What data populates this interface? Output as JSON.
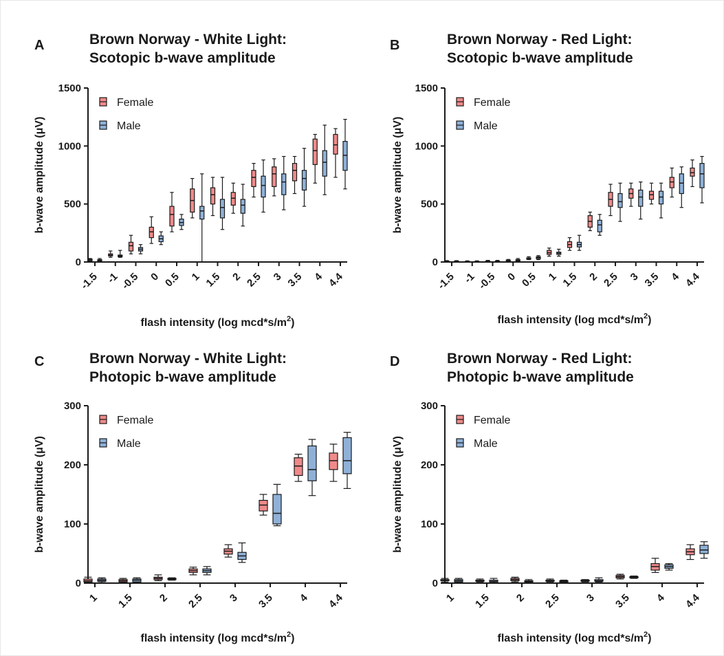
{
  "colors": {
    "female": "#f08a8a",
    "male": "#8fb1d8",
    "axis": "#1a1a1a"
  },
  "chart_data": [
    {
      "panel_letter": "A",
      "type": "box",
      "title_line1": "Brown Norway - White Light:",
      "title_line2": "Scotopic b-wave amplitude",
      "xlabel": "flash intensity (log mcd*s/m",
      "xlabel_sup": "2",
      "xlabel_end": ")",
      "ylabel": "b-wave amplitude (μV)",
      "ylim": [
        0,
        1500
      ],
      "yticks": [
        "0",
        "500",
        "1000",
        "1500"
      ],
      "ytick_values": [
        0,
        500,
        1000,
        1500
      ],
      "categories": [
        "-1.5",
        "-1",
        "-0.5",
        "0",
        "0.5",
        "1",
        "1.5",
        "2",
        "2.5",
        "3",
        "3.5",
        "4",
        "4.4"
      ],
      "legend": [
        "Female",
        "Male"
      ],
      "legend_position": "top-left",
      "series": [
        {
          "name": "Female",
          "boxes": [
            [
              5,
              10,
              18,
              25,
              30
            ],
            [
              40,
              52,
              60,
              70,
              95
            ],
            [
              70,
              95,
              140,
              170,
              230
            ],
            [
              160,
              210,
              260,
              300,
              390
            ],
            [
              260,
              310,
              410,
              480,
              600
            ],
            [
              380,
              430,
              530,
              630,
              720
            ],
            [
              400,
              500,
              580,
              640,
              730
            ],
            [
              420,
              490,
              550,
              600,
              680
            ],
            [
              560,
              650,
              730,
              790,
              850
            ],
            [
              570,
              650,
              760,
              820,
              890
            ],
            [
              590,
              700,
              790,
              850,
              910
            ],
            [
              680,
              840,
              960,
              1060,
              1100
            ],
            [
              730,
              930,
              1010,
              1100,
              1150
            ]
          ]
        },
        {
          "name": "Male",
          "boxes": [
            [
              5,
              10,
              15,
              20,
              30
            ],
            [
              40,
              45,
              52,
              60,
              100
            ],
            [
              70,
              95,
              110,
              125,
              150
            ],
            [
              150,
              175,
              200,
              225,
              260
            ],
            [
              280,
              315,
              340,
              370,
              410
            ],
            [
              0,
              370,
              440,
              480,
              760
            ],
            [
              280,
              380,
              470,
              540,
              730
            ],
            [
              310,
              420,
              490,
              540,
              670
            ],
            [
              430,
              560,
              660,
              740,
              880
            ],
            [
              450,
              580,
              690,
              760,
              910
            ],
            [
              480,
              620,
              720,
              790,
              980
            ],
            [
              580,
              740,
              860,
              960,
              1180
            ],
            [
              630,
              790,
              920,
              1040,
              1230
            ]
          ]
        }
      ]
    },
    {
      "panel_letter": "B",
      "type": "box",
      "title_line1": "Brown Norway - Red Light:",
      "title_line2": "Scotopic b-wave amplitude",
      "xlabel": "flash intensity (log mcd*s/m",
      "xlabel_sup": "2",
      "xlabel_end": ")",
      "ylabel": "b-wave amplitude (μV)",
      "ylim": [
        0,
        1500
      ],
      "yticks": [
        "0",
        "500",
        "1000",
        "1500"
      ],
      "ytick_values": [
        0,
        500,
        1000,
        1500
      ],
      "categories": [
        "-1.5",
        "-1",
        "-0.5",
        "0",
        "0.5",
        "1",
        "1.5",
        "2",
        "2.5",
        "3",
        "3.5",
        "4",
        "4.4"
      ],
      "legend": [
        "Female",
        "Male"
      ],
      "legend_position": "top-left",
      "series": [
        {
          "name": "Female",
          "boxes": [
            [
              0,
              3,
              5,
              8,
              12
            ],
            [
              0,
              2,
              4,
              6,
              10
            ],
            [
              0,
              3,
              6,
              9,
              14
            ],
            [
              3,
              8,
              12,
              16,
              22
            ],
            [
              20,
              25,
              30,
              35,
              45
            ],
            [
              50,
              65,
              80,
              100,
              120
            ],
            [
              100,
              125,
              150,
              175,
              210
            ],
            [
              270,
              300,
              350,
              400,
              430
            ],
            [
              400,
              480,
              540,
              600,
              670
            ],
            [
              480,
              550,
              590,
              630,
              680
            ],
            [
              500,
              540,
              580,
              610,
              680
            ],
            [
              560,
              640,
              690,
              730,
              810
            ],
            [
              650,
              740,
              770,
              810,
              880
            ]
          ]
        },
        {
          "name": "Male",
          "boxes": [
            [
              0,
              3,
              5,
              8,
              12
            ],
            [
              0,
              2,
              4,
              6,
              10
            ],
            [
              0,
              3,
              6,
              9,
              14
            ],
            [
              5,
              10,
              15,
              20,
              30
            ],
            [
              20,
              28,
              38,
              45,
              55
            ],
            [
              50,
              65,
              75,
              85,
              110
            ],
            [
              100,
              130,
              150,
              170,
              230
            ],
            [
              230,
              260,
              320,
              360,
              410
            ],
            [
              350,
              470,
              520,
              590,
              680
            ],
            [
              370,
              480,
              560,
              620,
              690
            ],
            [
              380,
              500,
              560,
              610,
              680
            ],
            [
              470,
              590,
              680,
              760,
              820
            ],
            [
              510,
              640,
              760,
              850,
              910
            ]
          ]
        }
      ]
    },
    {
      "panel_letter": "C",
      "type": "box",
      "title_line1": "Brown Norway - White Light:",
      "title_line2": "Photopic b-wave amplitude",
      "xlabel": "flash intensity (log mcd*s/m",
      "xlabel_sup": "2",
      "xlabel_end": ")",
      "ylabel": "b-wave amplitude (μV)",
      "ylim": [
        0,
        300
      ],
      "yticks": [
        "0",
        "100",
        "200",
        "300"
      ],
      "ytick_values": [
        0,
        100,
        200,
        300
      ],
      "categories": [
        "1",
        "1.5",
        "2",
        "2.5",
        "3",
        "3.5",
        "4",
        "4.4"
      ],
      "legend": [
        "Female",
        "Male"
      ],
      "legend_position": "top-left",
      "series": [
        {
          "name": "Female",
          "boxes": [
            [
              1,
              2,
              4,
              7,
              10
            ],
            [
              1,
              2,
              4,
              6,
              8
            ],
            [
              4,
              6,
              8,
              10,
              14
            ],
            [
              14,
              18,
              21,
              24,
              27
            ],
            [
              44,
              49,
              54,
              58,
              65
            ],
            [
              115,
              122,
              132,
              140,
              150
            ],
            [
              172,
              182,
              198,
              212,
              218
            ],
            [
              172,
              192,
              207,
              220,
              235
            ]
          ]
        },
        {
          "name": "Male",
          "boxes": [
            [
              1,
              3,
              5,
              7,
              9
            ],
            [
              1,
              2,
              5,
              7,
              9
            ],
            [
              5,
              6,
              7,
              8,
              9
            ],
            [
              14,
              18,
              21,
              24,
              28
            ],
            [
              35,
              40,
              46,
              52,
              68
            ],
            [
              97,
              100,
              118,
              150,
              167
            ],
            [
              148,
              173,
              192,
              232,
              243
            ],
            [
              160,
              185,
              207,
              246,
              255
            ]
          ]
        }
      ]
    },
    {
      "panel_letter": "D",
      "type": "box",
      "title_line1": "Brown Norway - Red Light:",
      "title_line2": "Photopic b-wave amplitude",
      "xlabel": "flash intensity (log mcd*s/m",
      "xlabel_sup": "2",
      "xlabel_end": ")",
      "ylabel": "b-wave amplitude (μV)",
      "ylim": [
        0,
        300
      ],
      "yticks": [
        "0",
        "100",
        "200",
        "300"
      ],
      "ytick_values": [
        0,
        100,
        200,
        300
      ],
      "categories": [
        "1",
        "1.5",
        "2",
        "2.5",
        "3",
        "3.5",
        "4",
        "4.4"
      ],
      "legend": [
        "Female",
        "Male"
      ],
      "legend_position": "top-left",
      "series": [
        {
          "name": "Female",
          "boxes": [
            [
              2,
              4,
              5,
              6,
              8
            ],
            [
              2,
              3,
              4,
              5,
              7
            ],
            [
              2,
              4,
              6,
              8,
              10
            ],
            [
              2,
              3,
              4,
              5,
              7
            ],
            [
              2,
              3,
              4,
              5,
              6
            ],
            [
              7,
              9,
              11,
              13,
              15
            ],
            [
              18,
              22,
              28,
              33,
              42
            ],
            [
              40,
              48,
              53,
              58,
              65
            ]
          ]
        },
        {
          "name": "Male",
          "boxes": [
            [
              1,
              2,
              4,
              6,
              8
            ],
            [
              0,
              2,
              3,
              5,
              8
            ],
            [
              1,
              2,
              3,
              4,
              6
            ],
            [
              1,
              2,
              3,
              4,
              5
            ],
            [
              2,
              3,
              4,
              6,
              9
            ],
            [
              8,
              9,
              10,
              11,
              12
            ],
            [
              22,
              25,
              28,
              31,
              33
            ],
            [
              42,
              50,
              56,
              64,
              70
            ]
          ]
        }
      ]
    }
  ]
}
